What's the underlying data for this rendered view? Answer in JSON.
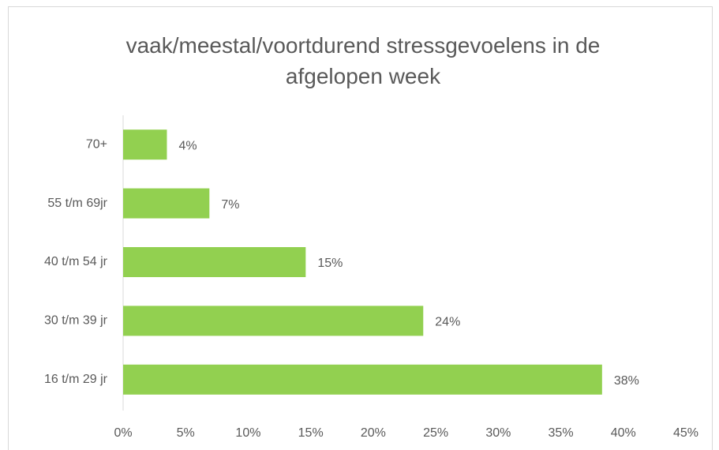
{
  "chart_data": {
    "type": "hbar",
    "title": "vaak/meestal/voortdurend stressgevoelens in de afgelopen week",
    "categories": [
      "70+",
      "55 t/m 69jr",
      "40 t/m 54 jr",
      "30 t/m 39 jr",
      "16 t/m 29 jr"
    ],
    "values": [
      3.5,
      6.9,
      14.6,
      24.0,
      38.3
    ],
    "value_labels": [
      "4%",
      "7%",
      "15%",
      "24%",
      "38%"
    ],
    "color": "#92d050",
    "xlim": [
      0,
      45
    ],
    "xticks": [
      {
        "value": 0,
        "label": "0%"
      },
      {
        "value": 5,
        "label": "5%"
      },
      {
        "value": 10,
        "label": "10%"
      },
      {
        "value": 15,
        "label": "15%"
      },
      {
        "value": 20,
        "label": "20%"
      },
      {
        "value": 25,
        "label": "25%"
      },
      {
        "value": 30,
        "label": "30%"
      },
      {
        "value": 35,
        "label": "35%"
      },
      {
        "value": 40,
        "label": "40%"
      },
      {
        "value": 45,
        "label": "45%"
      }
    ],
    "grid": false
  }
}
